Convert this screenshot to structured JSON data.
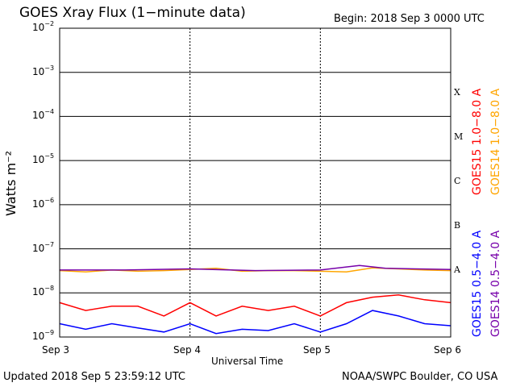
{
  "header": {
    "title": "GOES Xray Flux (1−minute data)",
    "begin": "Begin:  2018 Sep 3 0000 UTC"
  },
  "footer": {
    "updated": "Updated 2018 Sep  5 23:59:12 UTC",
    "credit": "NOAA/SWPC Boulder, CO USA"
  },
  "chart_data": {
    "type": "line",
    "title": "GOES Xray Flux (1−minute data)",
    "xlabel": "Universal Time",
    "ylabel": "Watts m⁻²",
    "yscale": "log",
    "ylim": [
      1e-09,
      0.01
    ],
    "xlim": [
      "2018-09-03",
      "2018-09-06"
    ],
    "x_ticks": [
      "Sep 3",
      "Sep 4",
      "Sep 5",
      "Sep 6"
    ],
    "y_ticks": [
      {
        "base": "10",
        "exp": "−2"
      },
      {
        "base": "10",
        "exp": "−3"
      },
      {
        "base": "10",
        "exp": "−4"
      },
      {
        "base": "10",
        "exp": "−5"
      },
      {
        "base": "10",
        "exp": "−6"
      },
      {
        "base": "10",
        "exp": "−7"
      },
      {
        "base": "10",
        "exp": "−8"
      },
      {
        "base": "10",
        "exp": "−9"
      }
    ],
    "flare_classes": [
      "X",
      "M",
      "C",
      "B",
      "A"
    ],
    "grid": true,
    "legend_placement": "right",
    "series": [
      {
        "name": "GOES15 1.0−8.0 A",
        "color": "#ff0000",
        "x": [
          0,
          0.2,
          0.4,
          0.6,
          0.8,
          1.0,
          1.2,
          1.4,
          1.6,
          1.8,
          2.0,
          2.2,
          2.4,
          2.6,
          2.8,
          3.0
        ],
        "y": [
          6e-09,
          4e-09,
          5e-09,
          5e-09,
          3e-09,
          6e-09,
          3e-09,
          5e-09,
          4e-09,
          5e-09,
          3e-09,
          6e-09,
          8e-09,
          9e-09,
          7e-09,
          6e-09
        ]
      },
      {
        "name": "GOES14 1.0−8.0 A",
        "color": "#ffa500",
        "x": [
          0,
          0.2,
          0.4,
          0.6,
          0.8,
          1.0,
          1.2,
          1.4,
          1.6,
          1.8,
          2.0,
          2.2,
          2.4,
          2.6,
          2.8,
          3.0
        ],
        "y": [
          3.2e-08,
          3e-08,
          3.3e-08,
          3.1e-08,
          3.2e-08,
          3.4e-08,
          3.6e-08,
          3.1e-08,
          3.2e-08,
          3.2e-08,
          3.1e-08,
          3e-08,
          3.7e-08,
          3.5e-08,
          3.3e-08,
          3.2e-08
        ]
      },
      {
        "name": "GOES15 0.5−4.0 A",
        "color": "#0000ff",
        "x": [
          0,
          0.2,
          0.4,
          0.6,
          0.8,
          1.0,
          1.2,
          1.4,
          1.6,
          1.8,
          2.0,
          2.2,
          2.4,
          2.6,
          2.8,
          3.0
        ],
        "y": [
          2e-09,
          1.5e-09,
          2e-09,
          1.6e-09,
          1.3e-09,
          2e-09,
          1.2e-09,
          1.5e-09,
          1.4e-09,
          2e-09,
          1.3e-09,
          2e-09,
          4e-09,
          3e-09,
          2e-09,
          1.8e-09
        ]
      },
      {
        "name": "GOES14 0.5−4.0 A",
        "color": "#7700aa",
        "x": [
          0,
          0.5,
          1.0,
          1.5,
          2.0,
          2.3,
          2.5,
          3.0
        ],
        "y": [
          3.3e-08,
          3.3e-08,
          3.5e-08,
          3.2e-08,
          3.3e-08,
          4.2e-08,
          3.6e-08,
          3.4e-08
        ]
      }
    ]
  }
}
